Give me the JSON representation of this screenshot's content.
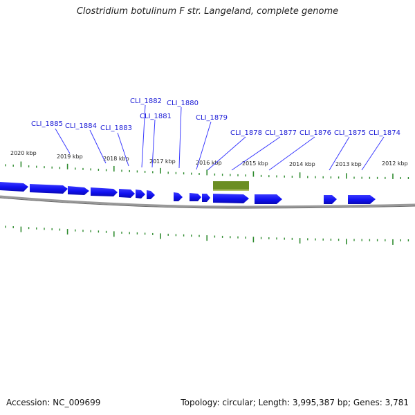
{
  "title": "Clostridium botulinum F str. Langeland, complete genome",
  "accession": "Accession: NC_009699",
  "summary": "Topology: circular; Length: 3,995,387 bp; Genes: 3,781",
  "colors": {
    "gene": "#1010f0",
    "highlight": "#6b8e23",
    "tick": "#2e8b2e",
    "label": "#1a1ad6",
    "backbone": "#888888"
  },
  "kbp_ticks": [
    "2020 kbp",
    "2019 kbp",
    "2018 kbp",
    "2017 kbp",
    "2016 kbp",
    "2015 kbp",
    "2014 kbp",
    "2013 kbp",
    "2012 kbp"
  ],
  "gene_labels": [
    "CLI_1885",
    "CLI_1884",
    "CLI_1883",
    "CLI_1882",
    "CLI_1881",
    "CLI_1880",
    "CLI_1879",
    "CLI_1878",
    "CLI_1877",
    "CLI_1876",
    "CLI_1875",
    "CLI_1874"
  ]
}
